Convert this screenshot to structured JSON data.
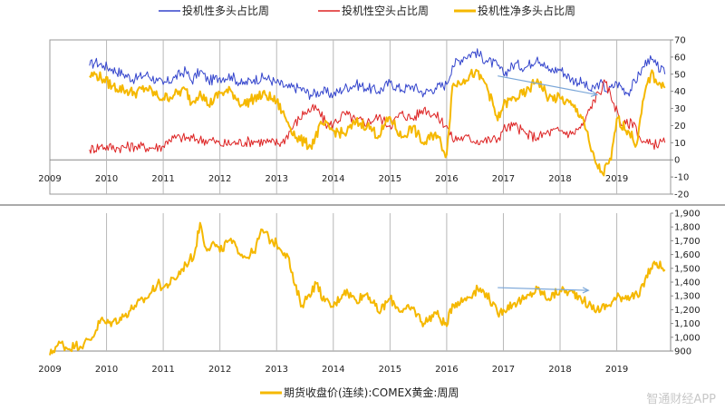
{
  "chart_data": [
    {
      "type": "line",
      "title": "",
      "xlabel": "",
      "ylabel": "",
      "xlim": [
        2009,
        2019.95
      ],
      "ylim": [
        -20,
        70
      ],
      "x_ticks": [
        "2009",
        "2010",
        "2011",
        "2012",
        "2013",
        "2014",
        "2015",
        "2016",
        "2017",
        "2018",
        "2019"
      ],
      "y_ticks": [
        "70",
        "60",
        "50",
        "40",
        "30",
        "20",
        "10",
        "0",
        "-10",
        "-20"
      ],
      "legend": "top",
      "grid": "vertical",
      "series": [
        {
          "name": "投机性多头占比周",
          "color": "#3344cc",
          "points": [
            [
              2009.7,
              55
            ],
            [
              2009.8,
              57
            ],
            [
              2009.95,
              55
            ],
            [
              2010.1,
              53
            ],
            [
              2010.3,
              50
            ],
            [
              2010.5,
              47
            ],
            [
              2010.7,
              50
            ],
            [
              2010.9,
              46
            ],
            [
              2011.0,
              44
            ],
            [
              2011.2,
              48
            ],
            [
              2011.4,
              52
            ],
            [
              2011.5,
              46
            ],
            [
              2011.65,
              52
            ],
            [
              2011.8,
              46
            ],
            [
              2012.0,
              48
            ],
            [
              2012.2,
              49
            ],
            [
              2012.4,
              44
            ],
            [
              2012.6,
              47
            ],
            [
              2012.8,
              48
            ],
            [
              2013.0,
              45
            ],
            [
              2013.2,
              42
            ],
            [
              2013.4,
              42
            ],
            [
              2013.6,
              38
            ],
            [
              2013.8,
              40
            ],
            [
              2014.0,
              38
            ],
            [
              2014.2,
              42
            ],
            [
              2014.4,
              44
            ],
            [
              2014.6,
              42
            ],
            [
              2014.8,
              40
            ],
            [
              2015.0,
              45
            ],
            [
              2015.2,
              41
            ],
            [
              2015.4,
              43
            ],
            [
              2015.6,
              39
            ],
            [
              2015.8,
              42
            ],
            [
              2016.0,
              44
            ],
            [
              2016.1,
              55
            ],
            [
              2016.3,
              60
            ],
            [
              2016.5,
              63
            ],
            [
              2016.7,
              58
            ],
            [
              2016.9,
              55
            ],
            [
              2017.0,
              50
            ],
            [
              2017.2,
              56
            ],
            [
              2017.4,
              54
            ],
            [
              2017.6,
              60
            ],
            [
              2017.8,
              52
            ],
            [
              2018.0,
              53
            ],
            [
              2018.2,
              47
            ],
            [
              2018.4,
              45
            ],
            [
              2018.55,
              40
            ],
            [
              2018.7,
              45
            ],
            [
              2018.85,
              40
            ],
            [
              2019.0,
              45
            ],
            [
              2019.2,
              39
            ],
            [
              2019.4,
              50
            ],
            [
              2019.55,
              59
            ],
            [
              2019.7,
              55
            ],
            [
              2019.85,
              50
            ]
          ]
        },
        {
          "name": "投机性空头占比周",
          "color": "#dd2222",
          "points": [
            [
              2009.7,
              6
            ],
            [
              2009.9,
              8
            ],
            [
              2010.2,
              7
            ],
            [
              2010.5,
              8
            ],
            [
              2010.8,
              7
            ],
            [
              2011.0,
              8
            ],
            [
              2011.1,
              12
            ],
            [
              2011.3,
              13
            ],
            [
              2011.6,
              12
            ],
            [
              2011.9,
              11
            ],
            [
              2012.0,
              9
            ],
            [
              2012.3,
              10
            ],
            [
              2012.6,
              11
            ],
            [
              2012.9,
              10
            ],
            [
              2013.1,
              10
            ],
            [
              2013.3,
              20
            ],
            [
              2013.5,
              28
            ],
            [
              2013.7,
              30
            ],
            [
              2013.9,
              20
            ],
            [
              2014.0,
              21
            ],
            [
              2014.2,
              27
            ],
            [
              2014.4,
              23
            ],
            [
              2014.6,
              22
            ],
            [
              2014.8,
              25
            ],
            [
              2015.0,
              20
            ],
            [
              2015.2,
              27
            ],
            [
              2015.4,
              24
            ],
            [
              2015.6,
              30
            ],
            [
              2015.8,
              26
            ],
            [
              2016.0,
              20
            ],
            [
              2016.1,
              12
            ],
            [
              2016.3,
              13
            ],
            [
              2016.6,
              11
            ],
            [
              2016.9,
              12
            ],
            [
              2017.0,
              18
            ],
            [
              2017.2,
              20
            ],
            [
              2017.4,
              15
            ],
            [
              2017.6,
              13
            ],
            [
              2017.8,
              16
            ],
            [
              2018.0,
              17
            ],
            [
              2018.2,
              15
            ],
            [
              2018.4,
              20
            ],
            [
              2018.6,
              35
            ],
            [
              2018.8,
              45
            ],
            [
              2018.95,
              33
            ],
            [
              2019.1,
              20
            ],
            [
              2019.3,
              22
            ],
            [
              2019.45,
              10
            ],
            [
              2019.6,
              9
            ],
            [
              2019.85,
              10
            ]
          ]
        },
        {
          "name": "投机性净多头占比周",
          "color": "#f5b800",
          "points": [
            [
              2009.7,
              49
            ],
            [
              2009.8,
              50
            ],
            [
              2009.95,
              47
            ],
            [
              2010.1,
              43
            ],
            [
              2010.3,
              41
            ],
            [
              2010.5,
              39
            ],
            [
              2010.7,
              42
            ],
            [
              2010.9,
              37
            ],
            [
              2011.0,
              36
            ],
            [
              2011.2,
              38
            ],
            [
              2011.4,
              41
            ],
            [
              2011.5,
              33
            ],
            [
              2011.65,
              40
            ],
            [
              2011.8,
              32
            ],
            [
              2012.0,
              39
            ],
            [
              2012.2,
              40
            ],
            [
              2012.4,
              32
            ],
            [
              2012.6,
              36
            ],
            [
              2012.8,
              38
            ],
            [
              2013.0,
              34
            ],
            [
              2013.2,
              22
            ],
            [
              2013.35,
              13
            ],
            [
              2013.5,
              10
            ],
            [
              2013.6,
              8
            ],
            [
              2013.8,
              21
            ],
            [
              2014.0,
              17
            ],
            [
              2014.2,
              15
            ],
            [
              2014.4,
              22
            ],
            [
              2014.6,
              20
            ],
            [
              2014.8,
              14
            ],
            [
              2015.0,
              25
            ],
            [
              2015.2,
              13
            ],
            [
              2015.4,
              19
            ],
            [
              2015.6,
              9
            ],
            [
              2015.8,
              16
            ],
            [
              2016.0,
              3
            ],
            [
              2016.1,
              43
            ],
            [
              2016.3,
              47
            ],
            [
              2016.5,
              51
            ],
            [
              2016.7,
              44
            ],
            [
              2016.9,
              23
            ],
            [
              2017.0,
              32
            ],
            [
              2017.2,
              36
            ],
            [
              2017.4,
              39
            ],
            [
              2017.6,
              47
            ],
            [
              2017.8,
              36
            ],
            [
              2018.0,
              36
            ],
            [
              2018.2,
              32
            ],
            [
              2018.4,
              25
            ],
            [
              2018.55,
              5
            ],
            [
              2018.65,
              -3
            ],
            [
              2018.75,
              -8
            ],
            [
              2018.9,
              0
            ],
            [
              2019.0,
              24
            ],
            [
              2019.2,
              17
            ],
            [
              2019.35,
              9
            ],
            [
              2019.5,
              40
            ],
            [
              2019.6,
              50
            ],
            [
              2019.75,
              45
            ],
            [
              2019.85,
              42
            ]
          ]
        }
      ],
      "annotations": [
        {
          "type": "arrow",
          "color": "#7aa6d8",
          "from": [
            2016.9,
            49
          ],
          "to": [
            2018.65,
            38
          ]
        }
      ]
    },
    {
      "type": "line",
      "title": "",
      "xlabel": "",
      "ylabel": "",
      "xlim": [
        2009,
        2019.95
      ],
      "ylim": [
        900,
        1900
      ],
      "x_ticks": [
        "2009",
        "2010",
        "2011",
        "2012",
        "2013",
        "2014",
        "2015",
        "2016",
        "2017",
        "2018",
        "2019"
      ],
      "y_ticks": [
        "1,900",
        "1,800",
        "1,700",
        "1,600",
        "1,500",
        "1,400",
        "1,300",
        "1,200",
        "1,100",
        "1,000",
        "900"
      ],
      "legend": "bottom",
      "grid": "vertical",
      "series": [
        {
          "name": "期货收盘价(连续):COMEX黄金:周周",
          "color": "#f5b800",
          "points": [
            [
              2009.0,
              870
            ],
            [
              2009.1,
              930
            ],
            [
              2009.2,
              960
            ],
            [
              2009.3,
              920
            ],
            [
              2009.45,
              940
            ],
            [
              2009.6,
              950
            ],
            [
              2009.75,
              1000
            ],
            [
              2009.9,
              1130
            ],
            [
              2010.0,
              1100
            ],
            [
              2010.1,
              1110
            ],
            [
              2010.3,
              1150
            ],
            [
              2010.5,
              1230
            ],
            [
              2010.7,
              1280
            ],
            [
              2010.9,
              1390
            ],
            [
              2011.0,
              1360
            ],
            [
              2011.2,
              1420
            ],
            [
              2011.4,
              1530
            ],
            [
              2011.55,
              1600
            ],
            [
              2011.65,
              1830
            ],
            [
              2011.75,
              1650
            ],
            [
              2011.9,
              1680
            ],
            [
              2012.0,
              1620
            ],
            [
              2012.15,
              1700
            ],
            [
              2012.3,
              1650
            ],
            [
              2012.45,
              1580
            ],
            [
              2012.6,
              1620
            ],
            [
              2012.75,
              1780
            ],
            [
              2012.9,
              1700
            ],
            [
              2013.0,
              1680
            ],
            [
              2013.2,
              1590
            ],
            [
              2013.3,
              1400
            ],
            [
              2013.45,
              1230
            ],
            [
              2013.55,
              1300
            ],
            [
              2013.7,
              1390
            ],
            [
              2013.85,
              1260
            ],
            [
              2014.0,
              1220
            ],
            [
              2014.2,
              1340
            ],
            [
              2014.4,
              1270
            ],
            [
              2014.6,
              1320
            ],
            [
              2014.8,
              1180
            ],
            [
              2015.0,
              1280
            ],
            [
              2015.2,
              1190
            ],
            [
              2015.4,
              1210
            ],
            [
              2015.6,
              1100
            ],
            [
              2015.8,
              1180
            ],
            [
              2016.0,
              1080
            ],
            [
              2016.1,
              1240
            ],
            [
              2016.3,
              1270
            ],
            [
              2016.55,
              1350
            ],
            [
              2016.7,
              1320
            ],
            [
              2016.9,
              1170
            ],
            [
              2017.0,
              1200
            ],
            [
              2017.2,
              1250
            ],
            [
              2017.4,
              1280
            ],
            [
              2017.6,
              1350
            ],
            [
              2017.8,
              1280
            ],
            [
              2018.0,
              1340
            ],
            [
              2018.15,
              1330
            ],
            [
              2018.35,
              1300
            ],
            [
              2018.5,
              1230
            ],
            [
              2018.65,
              1200
            ],
            [
              2018.85,
              1230
            ],
            [
              2019.0,
              1290
            ],
            [
              2019.2,
              1300
            ],
            [
              2019.4,
              1300
            ],
            [
              2019.5,
              1420
            ],
            [
              2019.6,
              1500
            ],
            [
              2019.7,
              1540
            ],
            [
              2019.85,
              1490
            ]
          ]
        }
      ],
      "annotations": [
        {
          "type": "arrow",
          "color": "#7aa6d8",
          "from": [
            2016.9,
            1360
          ],
          "to": [
            2018.5,
            1340
          ]
        }
      ]
    }
  ],
  "watermark": "智通财经APP"
}
